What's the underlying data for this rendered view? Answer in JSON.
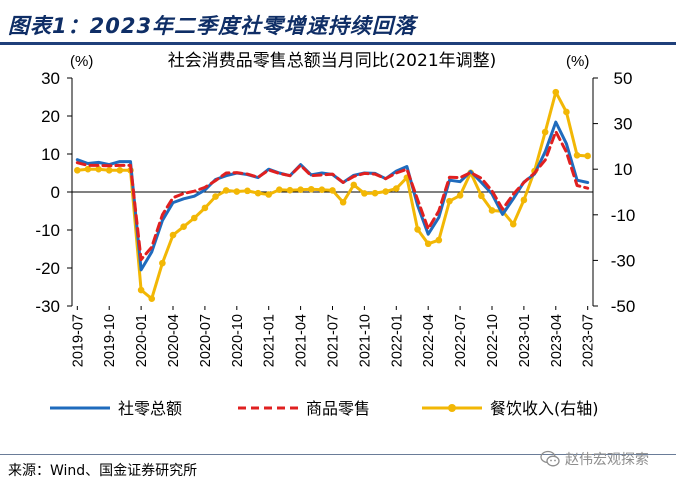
{
  "header": {
    "title": "图表1：2023年二季度社零增速持续回落"
  },
  "chart_data": {
    "type": "line",
    "title": "社会消费品零售总额当月同比(2021年调整)",
    "left_unit": "(%)",
    "right_unit": "(%)",
    "x": [
      "2019-07",
      "2019-08",
      "2019-09",
      "2019-10",
      "2019-11",
      "2019-12",
      "2020-01",
      "2020-02",
      "2020-03",
      "2020-04",
      "2020-05",
      "2020-06",
      "2020-07",
      "2020-08",
      "2020-09",
      "2020-10",
      "2020-11",
      "2020-12",
      "2021-01",
      "2021-02",
      "2021-03",
      "2021-04",
      "2021-05",
      "2021-06",
      "2021-07",
      "2021-08",
      "2021-09",
      "2021-10",
      "2021-11",
      "2021-12",
      "2022-01",
      "2022-02",
      "2022-03",
      "2022-04",
      "2022-05",
      "2022-06",
      "2022-07",
      "2022-08",
      "2022-09",
      "2022-10",
      "2022-11",
      "2022-12",
      "2023-01",
      "2023-02",
      "2023-03",
      "2023-04",
      "2023-05",
      "2023-06",
      "2023-07"
    ],
    "tick_labels": [
      "2019-07",
      "2019-10",
      "2020-01",
      "2020-04",
      "2020-07",
      "2020-10",
      "2021-01",
      "2021-04",
      "2021-07",
      "2021-10",
      "2022-01",
      "2022-04",
      "2022-07",
      "2022-10",
      "2023-01",
      "2023-04",
      "2023-07"
    ],
    "y_left": {
      "ticks": [
        "30",
        "20",
        "10",
        "0",
        "-10",
        "-20",
        "-30"
      ],
      "range": [
        -30,
        30
      ]
    },
    "y_right": {
      "ticks": [
        "50",
        "30",
        "10",
        "-10",
        "-30",
        "-50"
      ],
      "range": [
        -50,
        50
      ]
    },
    "grid": false,
    "legend_position": "bottom",
    "series": [
      {
        "name": "社零总额",
        "axis": "left",
        "color": "#1f6bbd",
        "values": [
          8.5,
          7.5,
          7.8,
          7.2,
          8.0,
          8.0,
          -20.5,
          -15.8,
          -7.5,
          -2.8,
          -1.8,
          -1.1,
          0.5,
          3.3,
          4.3,
          5.0,
          4.6,
          3.8,
          6.0,
          5.0,
          4.3,
          7.2,
          4.5,
          5.0,
          4.6,
          2.5,
          4.4,
          5.0,
          4.9,
          3.5,
          5.5,
          6.7,
          -3.5,
          -11.1,
          -6.7,
          3.1,
          2.7,
          5.4,
          2.5,
          -0.5,
          -5.9,
          -1.8,
          2.6,
          4.7,
          10.6,
          18.4,
          12.7,
          3.1,
          2.5
        ]
      },
      {
        "name": "商品零售",
        "axis": "left",
        "color": "#e02020",
        "dash": true,
        "values": [
          7.7,
          7.0,
          7.0,
          6.9,
          7.0,
          7.0,
          -17.8,
          -14.5,
          -6.0,
          -1.5,
          -0.4,
          0.2,
          1.2,
          3.0,
          5.0,
          5.1,
          4.7,
          3.9,
          5.8,
          4.9,
          4.3,
          7.0,
          4.3,
          4.5,
          4.7,
          2.5,
          4.1,
          4.9,
          4.7,
          3.5,
          5.0,
          6.0,
          -2.0,
          -9.7,
          -5.0,
          3.9,
          3.8,
          5.1,
          3.6,
          0.3,
          -4.5,
          -0.6,
          2.5,
          5.0,
          8.4,
          15.9,
          10.5,
          1.7,
          1.0
        ]
      },
      {
        "name": "餐饮收入(右轴)",
        "axis": "right",
        "color": "#f2b705",
        "values": [
          9.5,
          10.0,
          10.0,
          9.5,
          9.5,
          9.5,
          -43.0,
          -46.8,
          -31.2,
          -18.9,
          -15.2,
          -11.4,
          -7.0,
          -2.0,
          0.7,
          0.2,
          0.5,
          -0.5,
          -1.1,
          1.0,
          0.8,
          1.0,
          1.2,
          1.0,
          0.7,
          -4.5,
          3.1,
          -0.6,
          -0.5,
          0.2,
          1.5,
          6.3,
          -16.4,
          -22.7,
          -21.1,
          -4.0,
          -1.5,
          8.4,
          -1.7,
          -8.1,
          -8.4,
          -14.1,
          -3.5,
          9.2,
          26.3,
          43.8,
          35.1,
          16.1,
          15.8
        ]
      }
    ]
  },
  "footer": {
    "source": "来源：Wind、国金证券研究所",
    "watermark": "赵伟宏观探索"
  }
}
